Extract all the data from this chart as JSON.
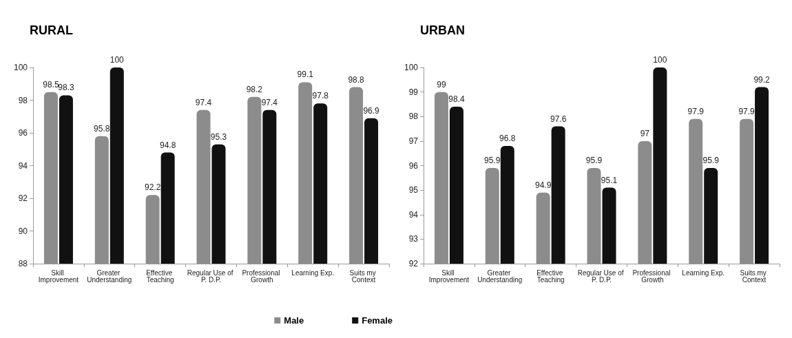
{
  "chart_data": [
    {
      "type": "bar",
      "title": "RURAL",
      "categories": [
        "Skill Improvement",
        "Greater Understanding",
        "Effective Teaching",
        "Regular Use of P. D.P.",
        "Professional Growth",
        "Learning Exp.",
        "Suits my Context"
      ],
      "series": [
        {
          "name": "Male",
          "color": "#8c8c8c",
          "values": [
            98.5,
            95.8,
            92.2,
            97.4,
            98.2,
            99.1,
            98.8
          ]
        },
        {
          "name": "Female",
          "color": "#111111",
          "values": [
            98.3,
            100,
            94.8,
            95.3,
            97.4,
            97.8,
            96.9
          ]
        }
      ],
      "ylim": [
        88,
        100
      ],
      "yticks": [
        88,
        90,
        92,
        94,
        96,
        98,
        100
      ],
      "data_labels": true,
      "grid": false,
      "legend": "bottom"
    },
    {
      "type": "bar",
      "title": "URBAN",
      "categories": [
        "Skill Improvement",
        "Greater Understanding",
        "Effective Teaching",
        "Regular Use of P. D.P.",
        "Professional Growth",
        "Learning Exp.",
        "Suits my Context"
      ],
      "series": [
        {
          "color": "#8c8c8c",
          "values": [
            99,
            95.9,
            94.9,
            95.9,
            97,
            97.9,
            97.9
          ]
        },
        {
          "color": "#111111",
          "values": [
            98.4,
            96.8,
            97.6,
            95.1,
            100,
            95.9,
            99.2
          ]
        }
      ],
      "ylim": [
        92,
        100
      ],
      "yticks": [
        92,
        93,
        94,
        95,
        96,
        97,
        98,
        99,
        100
      ],
      "data_labels": true,
      "grid": false,
      "legend": false
    }
  ]
}
